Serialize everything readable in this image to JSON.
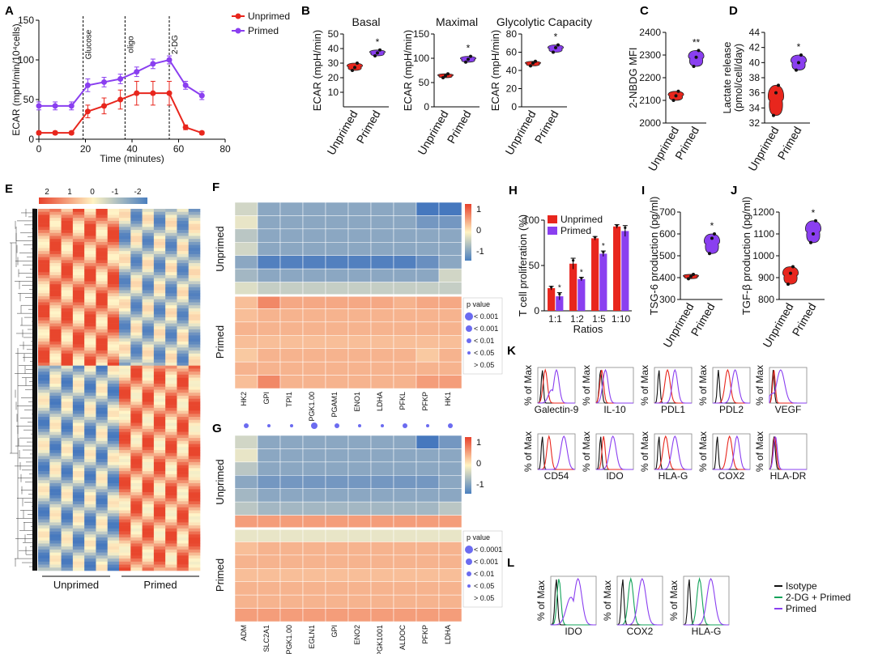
{
  "colors": {
    "unprimed": "#e8261d",
    "primed": "#8a3ff0",
    "isotype": "#111111",
    "dg": "#13a35a",
    "hot": "#e8412b",
    "mid": "#fff3c2",
    "cold": "#4a7fbf"
  },
  "panels": {
    "A": "A",
    "B": "B",
    "C": "C",
    "D": "D",
    "E": "E",
    "F": "F",
    "G": "G",
    "H": "H",
    "I": "I",
    "J": "J",
    "K": "K",
    "L": "L"
  },
  "panelA": {
    "ylabel": "ECAR (mpH/min/10⁴cells)",
    "xlabel": "Time (minutes)",
    "markers": [
      "Glucose",
      "oligo",
      "2-DG"
    ],
    "legend": [
      "Unprimed",
      "Primed"
    ]
  },
  "panelB": {
    "titles": [
      "Basal",
      "Maximal",
      "Glycolytic Capacity"
    ],
    "ylabel": "ECAR (mpH/min)"
  },
  "panelC": {
    "ylabel": "2-NBDG MFI"
  },
  "panelD": {
    "ylabel": "Lactate release",
    "ylabel2": "(pmol/cell/day)"
  },
  "panelE": {
    "legend_ticks": [
      "2",
      "1",
      "0",
      "-1",
      "-2"
    ],
    "groups": [
      "Unprimed",
      "Primed"
    ]
  },
  "panelF": {
    "groups": [
      "Unprimed",
      "Primed"
    ],
    "genes": [
      "HK2",
      "GPI",
      "TPI1",
      "PGK1.00",
      "PGAM1",
      "ENO1",
      "LDHA",
      "PFKL",
      "PFKP",
      "HK1"
    ],
    "scale": [
      "1",
      "0",
      "-1"
    ],
    "pvalue_title": "p value",
    "pvalue_items": [
      "< 0.001",
      "< 0.001",
      "< 0.01",
      "< 0.05",
      "> 0.05"
    ]
  },
  "panelG": {
    "groups": [
      "Unprimed",
      "Primed"
    ],
    "genes": [
      "ADM",
      "SLC2A1",
      "PGK1.00",
      "EGLN1",
      "GPI",
      "ENO2",
      "PGK1001",
      "ALDOC",
      "PFKP",
      "LDHA"
    ],
    "scale": [
      "1",
      "0",
      "-1"
    ],
    "pvalue_title": "p value",
    "pvalue_items": [
      "< 0.0001",
      "< 0.001",
      "< 0.01",
      "< 0.05",
      "> 0.05"
    ]
  },
  "panelH": {
    "ylabel": "T cell proliferation (%)",
    "xlabel": "Ratios",
    "legend": [
      "Unprimed",
      "Primed"
    ]
  },
  "panelI": {
    "ylabel": "TSG-6 production (pg/ml)"
  },
  "panelJ": {
    "ylabel": "TGF-β production (pg/ml)"
  },
  "panelK": {
    "ylabel": "% of Max",
    "markers": [
      "Galectin-9",
      "IL-10",
      "PDL1",
      "PDL2",
      "VEGF",
      "CD54",
      "IDO",
      "HLA-G",
      "COX2",
      "HLA-DR"
    ]
  },
  "panelL": {
    "ylabel": "% of Max",
    "markers": [
      "IDO",
      "COX2",
      "HLA-G"
    ],
    "legend": [
      "Isotype",
      "2-DG + Primed",
      "Primed"
    ]
  },
  "violin_groups": [
    "Unprimed",
    "Primed"
  ],
  "chart_data": [
    {
      "type": "line",
      "panel": "A",
      "x": [
        0,
        7,
        14,
        21,
        28,
        35,
        42,
        49,
        56,
        63,
        70
      ],
      "series": [
        {
          "name": "Unprimed",
          "values": [
            8,
            8,
            8,
            35,
            42,
            50,
            58,
            58,
            58,
            15,
            8
          ],
          "errors": [
            2,
            2,
            2,
            8,
            10,
            12,
            15,
            15,
            15,
            3,
            2
          ]
        },
        {
          "name": "Primed",
          "values": [
            42,
            42,
            42,
            68,
            72,
            76,
            85,
            95,
            100,
            68,
            55
          ],
          "errors": [
            5,
            5,
            5,
            8,
            6,
            6,
            6,
            6,
            5,
            5,
            5
          ]
        }
      ],
      "xlabel": "Time (minutes)",
      "ylabel": "ECAR (mpH/min/10⁴cells)",
      "xlim": [
        0,
        80
      ],
      "ylim": [
        0,
        150
      ],
      "xticks": [
        0,
        20,
        40,
        60,
        80
      ],
      "yticks": [
        0,
        50,
        100,
        150
      ]
    },
    {
      "type": "violin",
      "panel": "B-Basal",
      "title": "Basal",
      "categories": [
        "Unprimed",
        "Primed"
      ],
      "points": [
        [
          25,
          27,
          30
        ],
        [
          35,
          37,
          39
        ]
      ],
      "ylim": [
        0,
        50
      ],
      "yticks": [
        10,
        20,
        30,
        40,
        50
      ],
      "significance": [
        "",
        "*"
      ]
    },
    {
      "type": "violin",
      "panel": "B-Maximal",
      "title": "Maximal",
      "categories": [
        "Unprimed",
        "Primed"
      ],
      "points": [
        [
          60,
          64,
          68
        ],
        [
          92,
          98,
          104
        ]
      ],
      "ylim": [
        0,
        150
      ],
      "yticks": [
        0,
        50,
        100,
        150
      ],
      "significance": [
        "",
        "*"
      ]
    },
    {
      "type": "violin",
      "panel": "B-GlycolyticCapacity",
      "title": "Glycolytic Capacity",
      "categories": [
        "Unprimed",
        "Primed"
      ],
      "points": [
        [
          45,
          48,
          50
        ],
        [
          60,
          65,
          68
        ]
      ],
      "ylim": [
        0,
        80
      ],
      "yticks": [
        0,
        20,
        40,
        60,
        80
      ],
      "significance": [
        "",
        "*"
      ]
    },
    {
      "type": "violin",
      "panel": "C",
      "categories": [
        "Unprimed",
        "Primed"
      ],
      "points": [
        [
          2100,
          2120,
          2140
        ],
        [
          2250,
          2290,
          2320
        ]
      ],
      "ylim": [
        2000,
        2400
      ],
      "yticks": [
        2000,
        2100,
        2200,
        2300,
        2400
      ],
      "significance": [
        "",
        "**"
      ]
    },
    {
      "type": "violin",
      "panel": "D",
      "categories": [
        "Unprimed",
        "Primed"
      ],
      "points": [
        [
          33,
          36,
          37
        ],
        [
          39,
          40,
          41
        ]
      ],
      "ylim": [
        32,
        44
      ],
      "yticks": [
        32,
        34,
        36,
        38,
        40,
        42,
        44
      ],
      "significance": [
        "",
        "*"
      ]
    },
    {
      "type": "bar",
      "panel": "H",
      "categories": [
        "1:1",
        "1:2",
        "1:5",
        "1:10"
      ],
      "series": [
        {
          "name": "Unprimed",
          "values": [
            25,
            52,
            80,
            93
          ],
          "errors": [
            2,
            6,
            2,
            2
          ]
        },
        {
          "name": "Primed",
          "values": [
            16,
            35,
            63,
            88
          ],
          "errors": [
            4,
            2,
            3,
            6
          ]
        }
      ],
      "xlabel": "Ratios",
      "ylabel": "T cell proliferation (%)",
      "ylim": [
        0,
        100
      ],
      "yticks": [
        0,
        50,
        100
      ],
      "significance": [
        "*",
        "*",
        "*",
        ""
      ]
    },
    {
      "type": "violin",
      "panel": "I",
      "categories": [
        "Unprimed",
        "Primed"
      ],
      "points": [
        [
          395,
          405,
          415
        ],
        [
          510,
          580,
          600
        ]
      ],
      "ylim": [
        300,
        700
      ],
      "yticks": [
        300,
        400,
        500,
        600,
        700
      ],
      "significance": [
        "",
        "*"
      ]
    },
    {
      "type": "violin",
      "panel": "J",
      "categories": [
        "Unprimed",
        "Primed"
      ],
      "points": [
        [
          870,
          920,
          950
        ],
        [
          1060,
          1100,
          1160
        ]
      ],
      "ylim": [
        800,
        1200
      ],
      "yticks": [
        800,
        900,
        1000,
        1100,
        1200
      ],
      "significance": [
        "",
        "*"
      ]
    },
    {
      "type": "heatmap",
      "panel": "F",
      "rows": 14,
      "cols": 10,
      "colorbar": [
        1,
        0,
        -1
      ],
      "values": [
        [
          -0.4,
          -1,
          -1,
          -1,
          -1,
          -1,
          -1,
          -1,
          -1.6,
          -1.6
        ],
        [
          -0.2,
          -1,
          -1,
          -1,
          -1,
          -1,
          -1,
          -1,
          -1.2,
          -1.2
        ],
        [
          -0.6,
          -1,
          -1,
          -1,
          -1,
          -1,
          -1,
          -1,
          -1,
          -1
        ],
        [
          -0.4,
          -1,
          -1,
          -1,
          -1,
          -1,
          -1,
          -1,
          -1,
          -1
        ],
        [
          -1,
          -1.5,
          -1.5,
          -1.5,
          -1.5,
          -1.5,
          -1.5,
          -1.5,
          -1.3,
          -1
        ],
        [
          -0.8,
          -1,
          -1,
          -1,
          -1,
          -1,
          -1,
          -1,
          -1,
          -0.4
        ],
        [
          -0.3,
          -0.5,
          -0.5,
          -0.5,
          -0.5,
          -0.5,
          -0.5,
          -0.5,
          -0.5,
          -0.5
        ],
        [
          0.5,
          1,
          0.7,
          0.7,
          0.7,
          0.7,
          0.7,
          0.6,
          0.7,
          0.7
        ],
        [
          0.5,
          0.6,
          0.6,
          0.6,
          0.6,
          0.6,
          0.6,
          0.6,
          0.6,
          0.6
        ],
        [
          0.6,
          0.6,
          0.6,
          0.6,
          0.6,
          0.6,
          0.6,
          0.6,
          0.6,
          0.6
        ],
        [
          0.5,
          0.5,
          0.5,
          0.5,
          0.5,
          0.5,
          0.5,
          0.5,
          0.5,
          0.5
        ],
        [
          0.4,
          0.6,
          0.6,
          0.6,
          0.6,
          0.6,
          0.6,
          0.6,
          0.4,
          0.6
        ],
        [
          0.6,
          0.6,
          0.6,
          0.6,
          0.6,
          0.6,
          0.6,
          0.6,
          0.6,
          0.6
        ],
        [
          0.5,
          1,
          0.6,
          0.6,
          0.6,
          0.6,
          0.6,
          0.6,
          0.8,
          0.8
        ]
      ]
    },
    {
      "type": "heatmap",
      "panel": "G",
      "rows": 14,
      "cols": 10,
      "colorbar": [
        1,
        0,
        -1
      ],
      "values": [
        [
          -0.4,
          -1,
          -1,
          -1,
          -1,
          -1,
          -1,
          -1,
          -1.6,
          -1.2
        ],
        [
          -0.2,
          -1,
          -1,
          -1,
          -1,
          -1,
          -1,
          -1,
          -1,
          -1
        ],
        [
          -0.6,
          -1,
          -1,
          -1,
          -1,
          -1,
          -1,
          -1,
          -1,
          -1
        ],
        [
          -1,
          -1.2,
          -1.2,
          -1.2,
          -1.2,
          -1.2,
          -1.2,
          -1.2,
          -1.2,
          -1
        ],
        [
          -0.8,
          -1,
          -1,
          -1,
          -1,
          -1,
          -1,
          -1,
          -1,
          -1
        ],
        [
          -0.6,
          -0.8,
          -0.8,
          -0.8,
          -0.8,
          -0.8,
          -0.8,
          -0.8,
          -0.8,
          -0.6
        ],
        [
          0.8,
          0.8,
          0.8,
          0.8,
          0.8,
          0.8,
          0.8,
          0.8,
          0.8,
          0.8
        ],
        [
          -0.2,
          -0.2,
          -0.2,
          -0.2,
          -0.2,
          -0.2,
          -0.2,
          -0.2,
          -0.2,
          -0.2
        ],
        [
          0.5,
          0.6,
          0.6,
          0.6,
          0.6,
          0.6,
          0.6,
          0.6,
          0.6,
          0.6
        ],
        [
          0.6,
          0.6,
          0.6,
          0.6,
          0.6,
          0.6,
          0.6,
          0.6,
          0.6,
          0.6
        ],
        [
          0.5,
          0.5,
          0.5,
          0.5,
          0.5,
          0.5,
          0.5,
          0.5,
          0.5,
          0.5
        ],
        [
          0.6,
          0.6,
          0.6,
          0.6,
          0.6,
          0.6,
          0.6,
          0.6,
          0.6,
          0.6
        ],
        [
          0.6,
          0.6,
          0.6,
          0.6,
          0.6,
          0.6,
          0.6,
          0.6,
          0.6,
          0.6
        ],
        [
          0.8,
          0.8,
          0.8,
          0.8,
          0.8,
          0.8,
          0.8,
          0.8,
          0.8,
          0.8
        ]
      ]
    }
  ]
}
